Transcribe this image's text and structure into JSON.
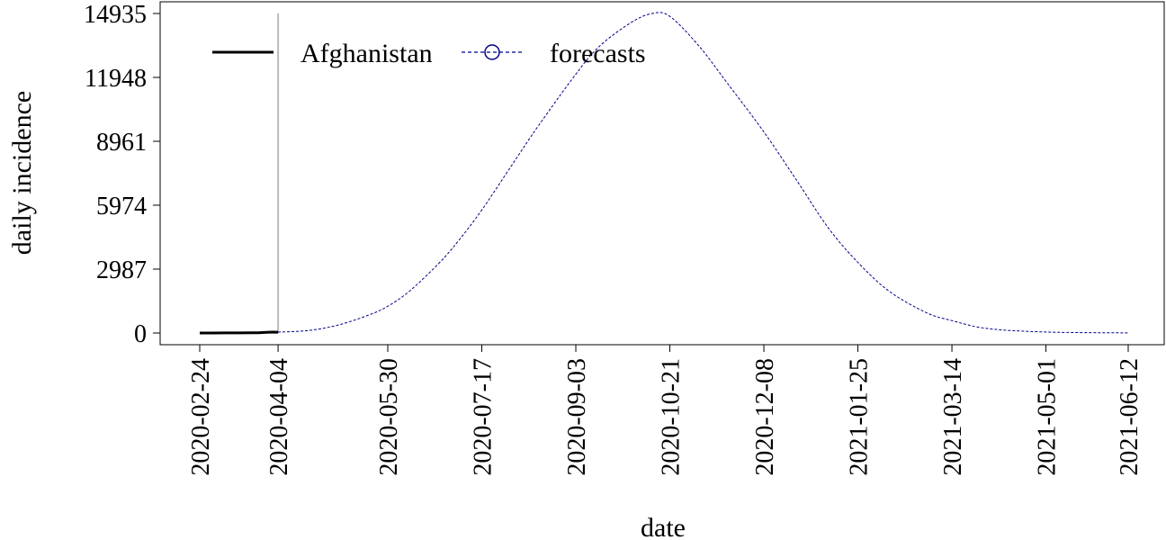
{
  "chart_data": {
    "type": "line",
    "xlabel": "date",
    "ylabel": "daily incidence",
    "x_tick_labels": [
      "2020-02-24",
      "2020-04-04",
      "2020-05-30",
      "2020-07-17",
      "2020-09-03",
      "2020-10-21",
      "2020-12-08",
      "2021-01-25",
      "2021-03-14",
      "2021-05-01",
      "2021-06-12"
    ],
    "y_ticks": [
      0,
      2987,
      5974,
      8961,
      11948,
      14935
    ],
    "y_tick_labels": [
      "0",
      "2987",
      "5974",
      "8961",
      "11948",
      "14935"
    ],
    "xlim": [
      "2020-02-24",
      "2021-06-12"
    ],
    "ylim": [
      0,
      14935
    ],
    "grid": false,
    "legend_position": "top-left",
    "vertical_line": {
      "x": "2020-04-04",
      "color": "#bbbbbb"
    },
    "series": [
      {
        "name": "Afghanistan",
        "color": "#000000",
        "style": "solid",
        "points": [
          [
            "2020-02-24",
            1
          ],
          [
            "2020-03-01",
            0
          ],
          [
            "2020-03-08",
            4
          ],
          [
            "2020-03-15",
            3
          ],
          [
            "2020-03-22",
            10
          ],
          [
            "2020-03-25",
            12
          ],
          [
            "2020-03-29",
            30
          ],
          [
            "2020-04-01",
            40
          ],
          [
            "2020-04-04",
            35
          ]
        ]
      },
      {
        "name": "forecasts",
        "color": "#00008b",
        "style": "dashed",
        "marker": "circle",
        "points": [
          [
            "2020-04-04",
            40
          ],
          [
            "2020-04-20",
            120
          ],
          [
            "2020-05-05",
            380
          ],
          [
            "2020-05-20",
            830
          ],
          [
            "2020-05-30",
            1250
          ],
          [
            "2020-06-10",
            1950
          ],
          [
            "2020-06-25",
            3250
          ],
          [
            "2020-07-05",
            4300
          ],
          [
            "2020-07-17",
            5750
          ],
          [
            "2020-08-01",
            7800
          ],
          [
            "2020-08-15",
            9700
          ],
          [
            "2020-09-03",
            12100
          ],
          [
            "2020-09-15",
            13400
          ],
          [
            "2020-10-01",
            14500
          ],
          [
            "2020-10-12",
            14935
          ],
          [
            "2020-10-21",
            14800
          ],
          [
            "2020-11-05",
            13400
          ],
          [
            "2020-11-20",
            11600
          ],
          [
            "2020-12-08",
            9400
          ],
          [
            "2020-12-25",
            7100
          ],
          [
            "2021-01-10",
            4900
          ],
          [
            "2021-01-25",
            3300
          ],
          [
            "2021-02-10",
            1950
          ],
          [
            "2021-03-01",
            950
          ],
          [
            "2021-03-14",
            580
          ],
          [
            "2021-04-01",
            210
          ],
          [
            "2021-05-01",
            45
          ],
          [
            "2021-06-12",
            5
          ]
        ]
      }
    ]
  }
}
